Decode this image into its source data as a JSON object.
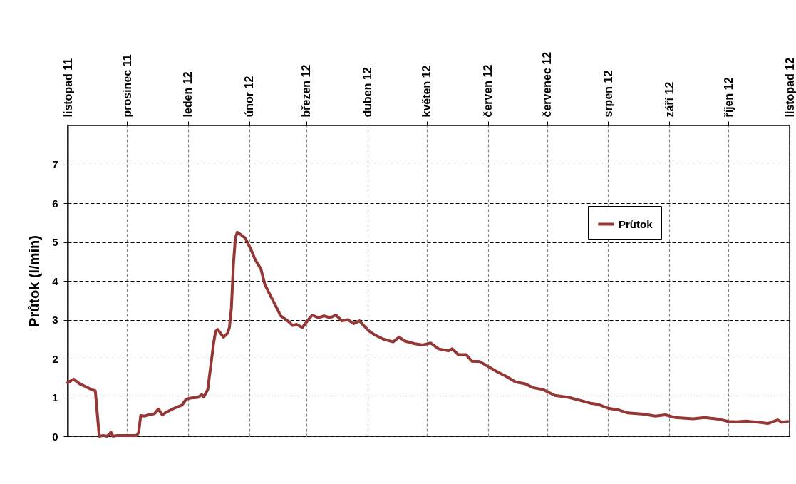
{
  "chart_data": {
    "type": "line",
    "ylabel": "Průtok (l/min)",
    "x": [
      "2011-11-01",
      "2011-11-04",
      "2011-11-07",
      "2011-11-10",
      "2011-11-13",
      "2011-11-15",
      "2011-11-17",
      "2011-11-19",
      "2011-11-21",
      "2011-11-23",
      "2011-11-24",
      "2011-11-26",
      "2011-11-28",
      "2011-12-06",
      "2011-12-07",
      "2011-12-08",
      "2011-12-10",
      "2011-12-12",
      "2011-12-15",
      "2011-12-17",
      "2011-12-19",
      "2011-12-21",
      "2011-12-25",
      "2011-12-29",
      "2011-12-31",
      "2012-01-02",
      "2012-01-06",
      "2012-01-08",
      "2012-01-09",
      "2012-01-11",
      "2012-01-12",
      "2012-01-14",
      "2012-01-15",
      "2012-01-16",
      "2012-01-19",
      "2012-01-21",
      "2012-01-22",
      "2012-01-23",
      "2012-01-24",
      "2012-01-25",
      "2012-01-26",
      "2012-01-28",
      "2012-01-30",
      "2012-02-02",
      "2012-02-04",
      "2012-02-07",
      "2012-02-09",
      "2012-02-11",
      "2012-02-14",
      "2012-02-17",
      "2012-02-21",
      "2012-02-23",
      "2012-02-25",
      "2012-02-28",
      "2012-03-02",
      "2012-03-04",
      "2012-03-07",
      "2012-03-10",
      "2012-03-13",
      "2012-03-16",
      "2012-03-19",
      "2012-03-22",
      "2012-03-25",
      "2012-03-28",
      "2012-03-30",
      "2012-04-02",
      "2012-04-05",
      "2012-04-09",
      "2012-04-14",
      "2012-04-17",
      "2012-04-20",
      "2012-04-25",
      "2012-04-29",
      "2012-05-03",
      "2012-05-07",
      "2012-05-12",
      "2012-05-14",
      "2012-05-17",
      "2012-05-21",
      "2012-05-24",
      "2012-05-28",
      "2012-06-01",
      "2012-06-06",
      "2012-06-10",
      "2012-06-15",
      "2012-06-20",
      "2012-06-24",
      "2012-06-29",
      "2012-07-05",
      "2012-07-12",
      "2012-07-18",
      "2012-07-23",
      "2012-07-27",
      "2012-08-01",
      "2012-08-06",
      "2012-08-11",
      "2012-08-19",
      "2012-08-25",
      "2012-08-30",
      "2012-09-04",
      "2012-09-13",
      "2012-09-19",
      "2012-09-26",
      "2012-10-01",
      "2012-10-05",
      "2012-10-10",
      "2012-10-16",
      "2012-10-21",
      "2012-10-26",
      "2012-10-28",
      "2012-10-31"
    ],
    "series": [
      {
        "name": "Průtok",
        "color": "#953735",
        "values": [
          1.38,
          1.47,
          1.35,
          1.28,
          1.2,
          1.17,
          0.0,
          0.02,
          0.0,
          0.1,
          0.0,
          0.02,
          0.02,
          0.02,
          0.1,
          0.53,
          0.52,
          0.55,
          0.58,
          0.7,
          0.55,
          0.62,
          0.72,
          0.8,
          0.95,
          0.98,
          1.0,
          1.07,
          1.01,
          1.2,
          1.6,
          2.4,
          2.7,
          2.75,
          2.55,
          2.65,
          2.8,
          3.3,
          4.4,
          5.1,
          5.25,
          5.18,
          5.1,
          4.8,
          4.55,
          4.3,
          3.9,
          3.7,
          3.4,
          3.1,
          2.95,
          2.85,
          2.88,
          2.8,
          3.0,
          3.12,
          3.05,
          3.1,
          3.05,
          3.12,
          2.97,
          3.0,
          2.9,
          2.97,
          2.85,
          2.7,
          2.6,
          2.5,
          2.43,
          2.55,
          2.45,
          2.38,
          2.35,
          2.4,
          2.25,
          2.2,
          2.25,
          2.1,
          2.1,
          1.93,
          1.92,
          1.8,
          1.65,
          1.55,
          1.4,
          1.35,
          1.25,
          1.2,
          1.05,
          1.0,
          0.92,
          0.85,
          0.82,
          0.72,
          0.68,
          0.6,
          0.57,
          0.52,
          0.55,
          0.48,
          0.45,
          0.48,
          0.44,
          0.38,
          0.37,
          0.39,
          0.36,
          0.33,
          0.42,
          0.36,
          0.38
        ]
      }
    ],
    "xlim": [
      "2011-11-01",
      "2012-11-01"
    ],
    "xticks": [
      {
        "value": "2011-11-01",
        "label": "listopad 11"
      },
      {
        "value": "2011-12-01",
        "label": "prosinec 11"
      },
      {
        "value": "2012-01-01",
        "label": "leden 12"
      },
      {
        "value": "2012-02-01",
        "label": "únor 12"
      },
      {
        "value": "2012-03-01",
        "label": "březen 12"
      },
      {
        "value": "2012-04-01",
        "label": "duben 12"
      },
      {
        "value": "2012-05-01",
        "label": "květen 12"
      },
      {
        "value": "2012-06-01",
        "label": "červen 12"
      },
      {
        "value": "2012-07-01",
        "label": "červenec 12"
      },
      {
        "value": "2012-08-01",
        "label": "srpen 12"
      },
      {
        "value": "2012-09-01",
        "label": "září 12"
      },
      {
        "value": "2012-10-01",
        "label": "říjen 12"
      },
      {
        "value": "2012-11-01",
        "label": "listopad 12"
      }
    ],
    "ylim": [
      0,
      8
    ],
    "yticks": [
      0,
      1,
      2,
      3,
      4,
      5,
      6,
      7
    ],
    "grid": true,
    "legend": "top right",
    "marker": "none",
    "line_style": "solid"
  }
}
